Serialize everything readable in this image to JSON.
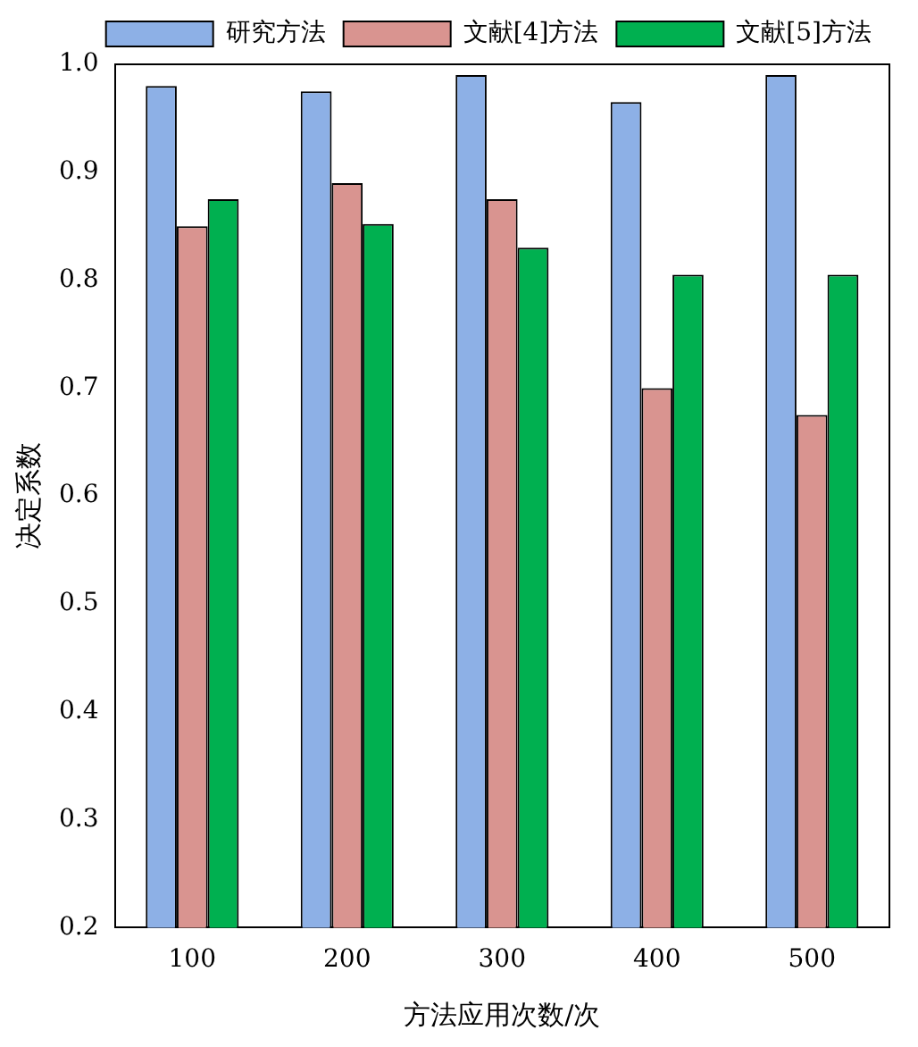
{
  "chart_data": {
    "type": "bar",
    "xlabel": "方法应用次数/次",
    "ylabel": "决定系数",
    "categories": [
      "100",
      "200",
      "300",
      "400",
      "500"
    ],
    "series": [
      {
        "name": "研究方法",
        "color": "#8db0e6",
        "values": [
          0.98,
          0.975,
          0.99,
          0.965,
          0.99
        ]
      },
      {
        "name": "文献[4]方法",
        "color": "#d99490",
        "values": [
          0.85,
          0.89,
          0.875,
          0.7,
          0.675
        ]
      },
      {
        "name": "文献[5]方法",
        "color": "#00b050",
        "values": [
          0.875,
          0.852,
          0.83,
          0.805,
          0.805
        ]
      }
    ],
    "ylim": [
      0.2,
      1.0
    ],
    "yticks": [
      0.2,
      0.3,
      0.4,
      0.5,
      0.6,
      0.7,
      0.8,
      0.9,
      {
        "value": 1,
        "label": "1.0"
      }
    ],
    "grid": false,
    "legend": "top right"
  }
}
